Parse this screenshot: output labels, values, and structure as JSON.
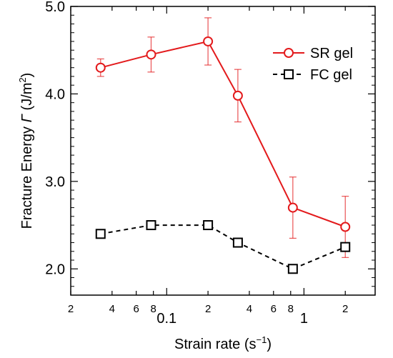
{
  "chart_data": {
    "type": "line",
    "xlabel": "Strain rate (s",
    "xlabel_sup": "−1",
    "xlabel_end": ")",
    "ylabel": "Fracture Energy ",
    "ylabel_symbol": "Γ",
    "ylabel_unit": " (J/m",
    "ylabel_sup": "2",
    "ylabel_end": ")",
    "x_scale": "log",
    "xlim": [
      0.02,
      3.3
    ],
    "ylim": [
      1.7,
      5.0
    ],
    "x_ticks": [
      {
        "value": 0.02,
        "label": "2",
        "major": false
      },
      {
        "value": 0.04,
        "label": "4",
        "major": false
      },
      {
        "value": 0.06,
        "label": "6",
        "major": false
      },
      {
        "value": 0.08,
        "label": "8",
        "major": false
      },
      {
        "value": 0.1,
        "label": "0.1",
        "major": true
      },
      {
        "value": 0.2,
        "label": "2",
        "major": false
      },
      {
        "value": 0.4,
        "label": "4",
        "major": false
      },
      {
        "value": 0.6,
        "label": "6",
        "major": false
      },
      {
        "value": 0.8,
        "label": "8",
        "major": false
      },
      {
        "value": 1,
        "label": "1",
        "major": true
      },
      {
        "value": 2,
        "label": "2",
        "major": false
      }
    ],
    "y_ticks": [
      {
        "value": 2.0,
        "label": "2.0"
      },
      {
        "value": 3.0,
        "label": "3.0"
      },
      {
        "value": 4.0,
        "label": "4.0"
      },
      {
        "value": 5.0,
        "label": "5.0"
      }
    ],
    "legend_position": "top-right",
    "series": [
      {
        "name": "SR gel",
        "color": "#e31a1c",
        "marker": "circle",
        "line": "solid",
        "points": [
          {
            "x": 0.033,
            "y": 4.3,
            "err_low": 0.1,
            "err_high": 0.1
          },
          {
            "x": 0.077,
            "y": 4.45,
            "err_low": 0.2,
            "err_high": 0.2
          },
          {
            "x": 0.2,
            "y": 4.6,
            "err_low": 0.27,
            "err_high": 0.27
          },
          {
            "x": 0.33,
            "y": 3.98,
            "err_low": 0.3,
            "err_high": 0.3
          },
          {
            "x": 0.83,
            "y": 2.7,
            "err_low": 0.35,
            "err_high": 0.35
          },
          {
            "x": 2.0,
            "y": 2.48,
            "err_low": 0.35,
            "err_high": 0.35
          }
        ]
      },
      {
        "name": "FC gel",
        "color": "#000000",
        "marker": "square",
        "line": "dashed",
        "points": [
          {
            "x": 0.033,
            "y": 2.4
          },
          {
            "x": 0.077,
            "y": 2.5
          },
          {
            "x": 0.2,
            "y": 2.5
          },
          {
            "x": 0.33,
            "y": 2.3
          },
          {
            "x": 0.83,
            "y": 2.0
          },
          {
            "x": 2.0,
            "y": 2.25
          }
        ]
      }
    ]
  }
}
